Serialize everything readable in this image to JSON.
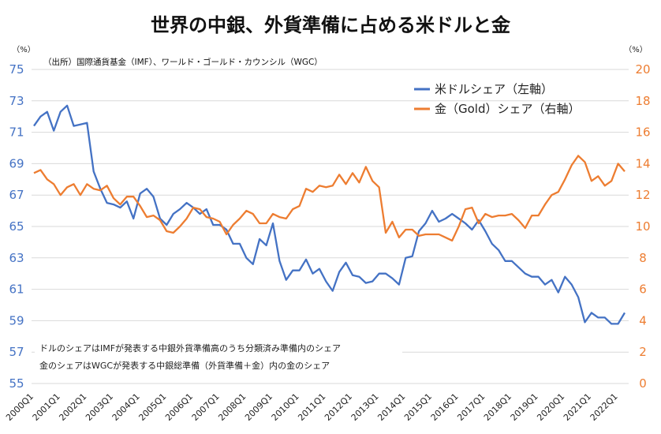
{
  "chart_data": {
    "type": "line",
    "title": "世界の中銀、外貨準備に占める米ドルと金",
    "source": "（出所）国際通貨基金（IMF）、ワールド・ゴールド・カウンシル（WGC）",
    "left_unit": "（%）",
    "right_unit": "（%）",
    "left_axis": {
      "min": 55,
      "max": 75,
      "ticks": [
        55,
        57,
        59,
        61,
        63,
        65,
        67,
        69,
        71,
        73,
        75
      ]
    },
    "right_axis": {
      "min": 0,
      "max": 20,
      "ticks": [
        0,
        2,
        4,
        6,
        8,
        10,
        12,
        14,
        16,
        18,
        20
      ]
    },
    "x_labels": [
      "2000Q1",
      "2001Q1",
      "2002Q1",
      "2003Q1",
      "2004Q1",
      "2005Q1",
      "2006Q1",
      "2007Q1",
      "2008Q1",
      "2009Q1",
      "2010Q1",
      "2011Q1",
      "2012Q1",
      "2013Q1",
      "2014Q1",
      "2015Q1",
      "2016Q1",
      "2017Q1",
      "2018Q1",
      "2019Q1",
      "2020Q1",
      "2021Q1",
      "2022Q1"
    ],
    "grid": true,
    "legend_position": "top-right",
    "series": [
      {
        "name": "米ドルシェア（左軸）",
        "axis": "left",
        "color": "#4472C4",
        "values": [
          71.4,
          72.0,
          72.3,
          71.1,
          72.3,
          72.7,
          71.4,
          71.5,
          71.6,
          68.5,
          67.4,
          66.5,
          66.4,
          66.2,
          66.6,
          65.5,
          67.1,
          67.4,
          66.9,
          65.5,
          65.1,
          65.8,
          66.1,
          66.5,
          66.2,
          65.8,
          66.1,
          65.1,
          65.1,
          64.8,
          63.9,
          63.9,
          63.0,
          62.6,
          64.2,
          63.8,
          65.2,
          62.8,
          61.6,
          62.2,
          62.2,
          62.9,
          62.0,
          62.3,
          61.5,
          60.9,
          62.1,
          62.7,
          61.9,
          61.8,
          61.4,
          61.5,
          62.0,
          62.0,
          61.7,
          61.3,
          63.0,
          63.1,
          64.7,
          65.2,
          66.0,
          65.3,
          65.5,
          65.8,
          65.5,
          65.2,
          64.8,
          65.4,
          64.7,
          63.9,
          63.5,
          62.8,
          62.8,
          62.4,
          62.0,
          61.8,
          61.8,
          61.3,
          61.6,
          60.8,
          61.8,
          61.3,
          60.5,
          58.9,
          59.5,
          59.2,
          59.2,
          58.8,
          58.8,
          59.5
        ]
      },
      {
        "name": "金（Gold）シェア（右軸）",
        "axis": "right",
        "color": "#ED7D31",
        "values": [
          13.4,
          13.6,
          13.0,
          12.7,
          12.0,
          12.5,
          12.7,
          12.0,
          12.7,
          12.4,
          12.3,
          12.6,
          11.8,
          11.4,
          11.9,
          11.9,
          11.3,
          10.6,
          10.7,
          10.4,
          9.7,
          9.6,
          10.0,
          10.5,
          11.2,
          11.1,
          10.6,
          10.5,
          10.3,
          9.5,
          10.1,
          10.5,
          11.0,
          10.8,
          10.2,
          10.2,
          10.8,
          10.6,
          10.5,
          11.1,
          11.3,
          12.4,
          12.2,
          12.6,
          12.5,
          12.6,
          13.3,
          12.7,
          13.4,
          12.8,
          13.8,
          12.9,
          12.5,
          9.6,
          10.3,
          9.3,
          9.8,
          9.8,
          9.4,
          9.5,
          9.5,
          9.5,
          9.3,
          9.1,
          10.0,
          11.1,
          11.2,
          10.2,
          10.8,
          10.6,
          10.7,
          10.7,
          10.8,
          10.4,
          9.9,
          10.7,
          10.7,
          11.4,
          12.0,
          12.2,
          13.0,
          13.9,
          14.5,
          14.1,
          12.9,
          13.2,
          12.6,
          12.9,
          14.0,
          13.5
        ]
      }
    ],
    "notes": [
      "ドルのシェアはIMFが発表する中銀外貨準備高のうち分類済み準備内のシェア",
      "金のシェアはWGCが発表する中銀総準備（外貨準備＋金）内の金のシェア"
    ]
  }
}
